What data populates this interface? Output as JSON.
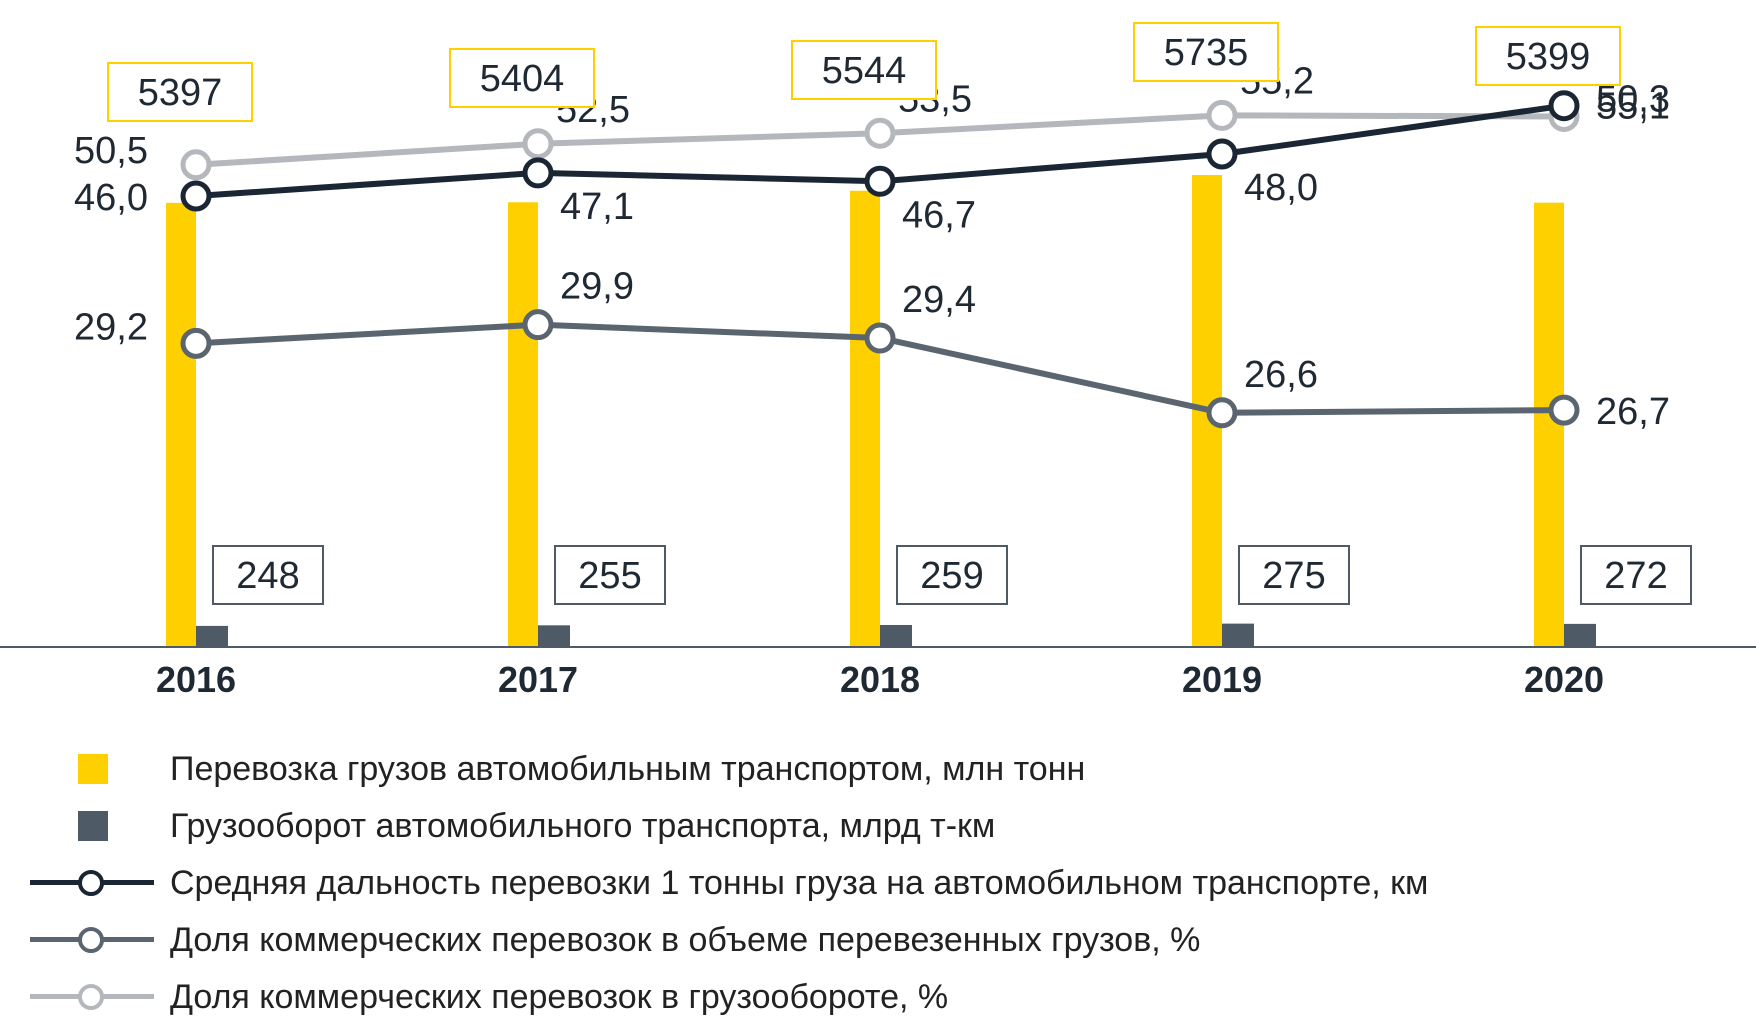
{
  "chart_data": {
    "type": "bar",
    "categories": [
      "2016",
      "2017",
      "2018",
      "2019",
      "2020"
    ],
    "series": [
      {
        "name": "Перевозка грузов автомобильным транспортом, млн тонн",
        "kind": "bar",
        "color": "#FFD000",
        "values": [
          5397,
          5404,
          5544,
          5735,
          5399
        ],
        "labels": [
          "5397",
          "5404",
          "5544",
          "5735",
          "5399"
        ]
      },
      {
        "name": "Грузооборот автомобильного транспорта, млрд т-км",
        "kind": "bar",
        "color": "#4E5A66",
        "values": [
          248,
          255,
          259,
          275,
          272
        ],
        "labels": [
          "248",
          "255",
          "259",
          "275",
          "272"
        ]
      },
      {
        "name": "Средняя дальность перевозки 1 тонны груза на автомобильном транспорте, км",
        "kind": "line",
        "color": "#1B2634",
        "values": [
          46.0,
          47.1,
          46.7,
          48.0,
          50.3
        ],
        "labels": [
          "46,0",
          "47,1",
          "46,7",
          "48,0",
          "50,3"
        ]
      },
      {
        "name": "Доля коммерческих перевозок в объеме перевезенных грузов, %",
        "kind": "line",
        "color": "#5A6570",
        "values": [
          29.2,
          29.9,
          29.4,
          26.6,
          26.7
        ],
        "labels": [
          "29,2",
          "29,9",
          "29,4",
          "26,6",
          "26,7"
        ]
      },
      {
        "name": "Доля коммерческих перевозок в грузообороте, %",
        "kind": "line",
        "color": "#B4B8BC",
        "values": [
          50.5,
          52.5,
          53.5,
          55.2,
          55.1
        ],
        "labels": [
          "50,5",
          "52,5",
          "53,5",
          "55,2",
          "55,1"
        ]
      }
    ],
    "legend_position": "bottom",
    "grid": false,
    "label_box_color": "#FFD000"
  }
}
